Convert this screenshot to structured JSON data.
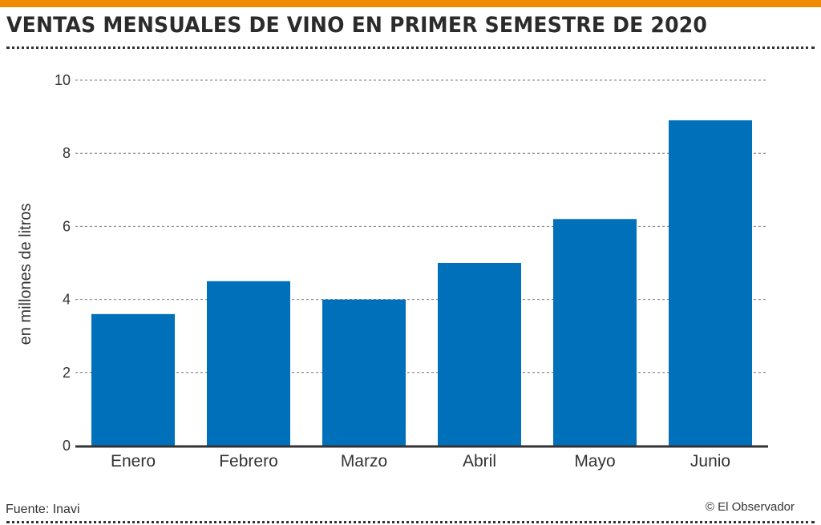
{
  "title": "VENTAS MENSUALES DE VINO EN PRIMER SEMESTRE DE 2020",
  "source": "Fuente: Inavi",
  "credit": "© El Observador",
  "colors": {
    "bar": "#0070bb",
    "accent": "#f08a00",
    "text": "#333333"
  },
  "chart_data": {
    "type": "bar",
    "title": "VENTAS MENSUALES DE VINO EN PRIMER SEMESTRE DE 2020",
    "categories": [
      "Enero",
      "Febrero",
      "Marzo",
      "Abril",
      "Mayo",
      "Junio"
    ],
    "values": [
      3.6,
      4.5,
      4.0,
      5.0,
      6.2,
      8.9
    ],
    "xlabel": "",
    "ylabel": "en millones de litros",
    "ylim": [
      0,
      10
    ],
    "yticks": [
      0,
      2,
      4,
      6,
      8,
      10
    ],
    "grid": true
  }
}
